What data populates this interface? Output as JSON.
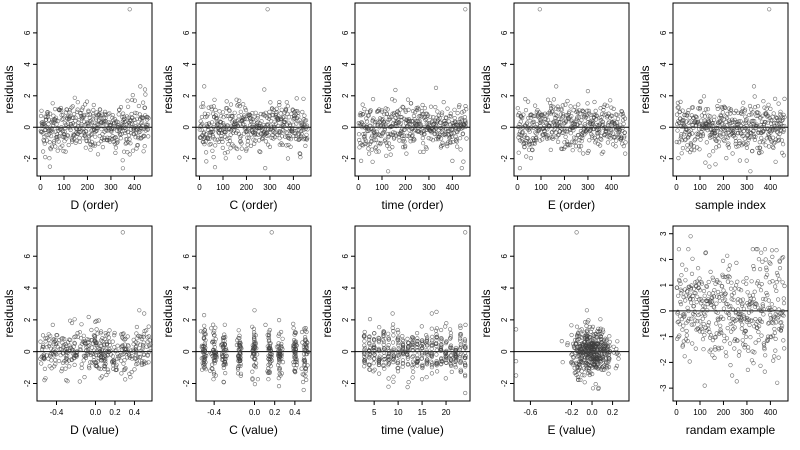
{
  "chart_data": [
    {
      "type": "scatter",
      "xlabel": "D (order)",
      "ylabel": "residuals",
      "x_ticks": [
        0,
        100,
        200,
        300,
        400
      ],
      "x_tick_labels": [
        "0",
        "100",
        "200",
        "300",
        "400"
      ],
      "y_ticks": [
        -2,
        0,
        2,
        4,
        6
      ],
      "y_tick_labels": [
        "-2",
        "0",
        "2",
        "4",
        "6"
      ],
      "xlim": [
        -15,
        475
      ],
      "ylim": [
        -3.1,
        7.9
      ],
      "hline": 0,
      "grid": false,
      "legend": "none",
      "outliers": [
        {
          "x": 380,
          "y": 7.5
        },
        {
          "x": 425,
          "y": 2.6
        },
        {
          "x": 445,
          "y": 2.4
        },
        {
          "x": 40,
          "y": -2.5
        },
        {
          "x": 20,
          "y": -1.9
        },
        {
          "x": 350,
          "y": -2.1
        }
      ],
      "cloud": {
        "n": 460,
        "x_range": [
          1,
          460
        ],
        "y_center": 0,
        "y_spread": 0.75
      }
    },
    {
      "type": "scatter",
      "xlabel": "C (order)",
      "ylabel": "residuals",
      "x_ticks": [
        0,
        100,
        200,
        300,
        400
      ],
      "x_tick_labels": [
        "0",
        "100",
        "200",
        "300",
        "400"
      ],
      "y_ticks": [
        -2,
        0,
        2,
        4,
        6
      ],
      "y_tick_labels": [
        "-2",
        "0",
        "2",
        "4",
        "6"
      ],
      "xlim": [
        -15,
        475
      ],
      "ylim": [
        -3.1,
        7.9
      ],
      "hline": 0,
      "grid": false,
      "legend": "none",
      "outliers": [
        {
          "x": 290,
          "y": 7.5
        },
        {
          "x": 20,
          "y": 2.6
        },
        {
          "x": 280,
          "y": -2.6
        },
        {
          "x": 60,
          "y": -1.9
        },
        {
          "x": 340,
          "y": 1.6
        }
      ],
      "cloud": {
        "n": 460,
        "x_range": [
          1,
          460
        ],
        "y_center": 0,
        "y_spread": 0.75
      }
    },
    {
      "type": "scatter",
      "xlabel": "time (order)",
      "ylabel": "residuals",
      "x_ticks": [
        0,
        100,
        200,
        300,
        400
      ],
      "x_tick_labels": [
        "0",
        "100",
        "200",
        "300",
        "400"
      ],
      "y_ticks": [
        -2,
        0,
        2,
        4,
        6
      ],
      "y_tick_labels": [
        "-2",
        "0",
        "2",
        "4",
        "6"
      ],
      "xlim": [
        -15,
        475
      ],
      "ylim": [
        -3.1,
        7.9
      ],
      "hline": 0,
      "grid": false,
      "legend": "none",
      "outliers": [
        {
          "x": 455,
          "y": 7.5
        },
        {
          "x": 440,
          "y": -2.6
        },
        {
          "x": 330,
          "y": 2.5
        },
        {
          "x": 60,
          "y": -2.2
        }
      ],
      "cloud": {
        "n": 460,
        "x_range": [
          1,
          460
        ],
        "y_center": 0,
        "y_spread": 0.75
      }
    },
    {
      "type": "scatter",
      "xlabel": "E (order)",
      "ylabel": "residuals",
      "x_ticks": [
        0,
        100,
        200,
        300,
        400
      ],
      "x_tick_labels": [
        "0",
        "100",
        "200",
        "300",
        "400"
      ],
      "y_ticks": [
        -2,
        0,
        2,
        4,
        6
      ],
      "y_tick_labels": [
        "-2",
        "0",
        "2",
        "4",
        "6"
      ],
      "xlim": [
        -15,
        475
      ],
      "ylim": [
        -3.1,
        7.9
      ],
      "hline": 0,
      "grid": false,
      "legend": "none",
      "outliers": [
        {
          "x": 95,
          "y": 7.5
        },
        {
          "x": 10,
          "y": -2.6
        },
        {
          "x": 165,
          "y": 2.6
        },
        {
          "x": 300,
          "y": 2.3
        }
      ],
      "cloud": {
        "n": 460,
        "x_range": [
          1,
          460
        ],
        "y_center": 0,
        "y_spread": 0.75
      }
    },
    {
      "type": "scatter",
      "xlabel": "sample index",
      "ylabel": "residuals",
      "x_ticks": [
        0,
        100,
        200,
        300,
        400
      ],
      "x_tick_labels": [
        "0",
        "100",
        "200",
        "300",
        "400"
      ],
      "y_ticks": [
        -2,
        0,
        2,
        4,
        6
      ],
      "y_tick_labels": [
        "-2",
        "0",
        "2",
        "4",
        "6"
      ],
      "xlim": [
        -15,
        475
      ],
      "ylim": [
        -3.1,
        7.9
      ],
      "hline": 0,
      "grid": false,
      "legend": "none",
      "outliers": [
        {
          "x": 395,
          "y": 7.5
        },
        {
          "x": 330,
          "y": 2.6
        },
        {
          "x": 460,
          "y": 1.8
        },
        {
          "x": 140,
          "y": -2.5
        }
      ],
      "cloud": {
        "n": 460,
        "x_range": [
          1,
          460
        ],
        "y_center": 0,
        "y_spread": 0.75
      }
    },
    {
      "type": "scatter",
      "xlabel": "D (value)",
      "ylabel": "residuals",
      "x_ticks": [
        -0.4,
        0.0,
        0.2,
        0.4
      ],
      "x_tick_labels": [
        "-0.4",
        "0.0",
        "0.2",
        "0.4"
      ],
      "y_ticks": [
        -2,
        0,
        2,
        4,
        6
      ],
      "y_tick_labels": [
        "-2",
        "0",
        "2",
        "4",
        "6"
      ],
      "xlim": [
        -0.6,
        0.58
      ],
      "ylim": [
        -3.1,
        7.9
      ],
      "hline": 0,
      "grid": false,
      "legend": "none",
      "outliers": [
        {
          "x": 0.28,
          "y": 7.5
        },
        {
          "x": 0.45,
          "y": 2.6
        },
        {
          "x": 0.5,
          "y": 2.4
        }
      ],
      "columns": [
        -0.52,
        -0.4,
        -0.3,
        -0.2,
        -0.1,
        0.0,
        0.05,
        0.1,
        0.2,
        0.3,
        0.4,
        0.5
      ],
      "col_jitter": 0.035,
      "per_col": 34,
      "y_spread": 0.75
    },
    {
      "type": "scatter",
      "xlabel": "C (value)",
      "ylabel": "residuals",
      "x_ticks": [
        -0.4,
        0.0,
        0.2,
        0.4
      ],
      "x_tick_labels": [
        "-0.4",
        "0.0",
        "0.2",
        "0.4"
      ],
      "y_ticks": [
        -2,
        0,
        2,
        4,
        6
      ],
      "y_tick_labels": [
        "-2",
        "0",
        "2",
        "4",
        "6"
      ],
      "xlim": [
        -0.58,
        0.56
      ],
      "ylim": [
        -3.1,
        7.9
      ],
      "hline": 0,
      "grid": false,
      "legend": "none",
      "outliers": [
        {
          "x": 0.17,
          "y": 7.5
        },
        {
          "x": 0.0,
          "y": 2.6
        },
        {
          "x": -0.5,
          "y": 2.3
        }
      ],
      "columns": [
        -0.5,
        -0.4,
        -0.3,
        -0.15,
        0.0,
        0.15,
        0.25,
        0.4,
        0.5
      ],
      "col_jitter": 0.012,
      "per_col": 48,
      "y_spread": 0.8
    },
    {
      "type": "scatter",
      "xlabel": "time (value)",
      "ylabel": "residuals",
      "x_ticks": [
        5,
        10,
        15,
        20
      ],
      "x_tick_labels": [
        "5",
        "10",
        "15",
        "20"
      ],
      "y_ticks": [
        -2,
        0,
        2,
        4,
        6
      ],
      "y_tick_labels": [
        "-2",
        "0",
        "2",
        "4",
        "6"
      ],
      "xlim": [
        1,
        25
      ],
      "ylim": [
        -3.1,
        7.9
      ],
      "hline": 0,
      "grid": false,
      "legend": "none",
      "outliers": [
        {
          "x": 24,
          "y": 7.5
        },
        {
          "x": 24,
          "y": -2.6
        },
        {
          "x": 18,
          "y": 2.5
        },
        {
          "x": 8,
          "y": -2.2
        }
      ],
      "columns": [
        3,
        4,
        5,
        6,
        7,
        8,
        9,
        10,
        11,
        12,
        13,
        14,
        15,
        16,
        17,
        18,
        19,
        20,
        21,
        22,
        23,
        24
      ],
      "col_jitter": 0.08,
      "per_col": 20,
      "y_spread": 0.75
    },
    {
      "type": "scatter",
      "xlabel": "E (value)",
      "ylabel": "residuals",
      "x_ticks": [
        -0.6,
        -0.2,
        0.0,
        0.2
      ],
      "x_tick_labels": [
        "-0.6",
        "-0.2",
        "0.0",
        "0.2"
      ],
      "y_ticks": [
        -2,
        0,
        2,
        4,
        6
      ],
      "y_tick_labels": [
        "-2",
        "0",
        "2",
        "4",
        "6"
      ],
      "xlim": [
        -0.76,
        0.36
      ],
      "ylim": [
        -3.1,
        7.9
      ],
      "hline": 0,
      "grid": false,
      "legend": "none",
      "outliers": [
        {
          "x": -0.15,
          "y": 7.5
        },
        {
          "x": -0.74,
          "y": 1.4
        },
        {
          "x": -0.74,
          "y": -1.5
        },
        {
          "x": -0.74,
          "y": -0.6
        },
        {
          "x": -0.05,
          "y": 2.6
        }
      ],
      "cluster": {
        "n": 430,
        "x_center": 0.0,
        "x_spread": 0.1,
        "y_center": 0,
        "y_spread": 0.75
      }
    },
    {
      "type": "scatter",
      "xlabel": "randam example",
      "ylabel": "residuals",
      "x_ticks": [
        0,
        100,
        200,
        300,
        400
      ],
      "x_tick_labels": [
        "0",
        "100",
        "200",
        "300",
        "400"
      ],
      "y_ticks": [
        -3,
        -2,
        -1,
        0,
        1,
        2,
        3
      ],
      "y_tick_labels": [
        "-3",
        "-2",
        "-1",
        "0",
        "1",
        "2",
        "3"
      ],
      "xlim": [
        -15,
        475
      ],
      "ylim": [
        -3.5,
        3.3
      ],
      "hline": 0,
      "grid": false,
      "legend": "none",
      "outliers": [
        {
          "x": 120,
          "y": -2.9
        },
        {
          "x": 60,
          "y": 2.9
        }
      ],
      "cloud": {
        "n": 460,
        "x_range": [
          1,
          460
        ],
        "y_center": 0,
        "y_spread": 1.0
      }
    }
  ],
  "style": {
    "point_color": "#3d3d3d",
    "axis_color": "#000000",
    "line_color": "#000000",
    "background": "#ffffff"
  }
}
